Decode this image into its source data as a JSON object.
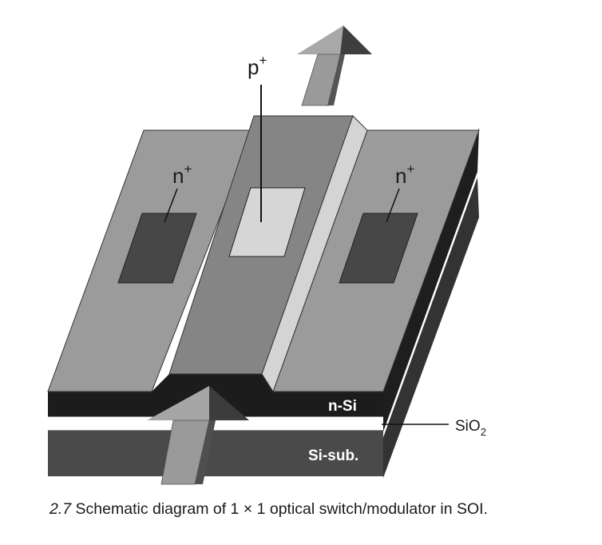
{
  "labels": {
    "p_contact": {
      "base": "p",
      "sup": "+"
    },
    "n_contact_left": {
      "base": "n",
      "sup": "+"
    },
    "n_contact_right": {
      "base": "n",
      "sup": "+"
    },
    "n_si": "n-Si",
    "sio2": {
      "base": "SiO",
      "sub": "2"
    },
    "si_sub": "Si-sub."
  },
  "caption": {
    "number": "2.7",
    "text": "Schematic diagram of 1 × 1 optical switch/modulator in SOI."
  },
  "colors": {
    "top_surface": "#9b9b9b",
    "rib": "#858585",
    "rib_side": "#d4d4d4",
    "n_pad": "#474747",
    "p_pad": "#d6d6d6",
    "n_si_layer": "#1c1c1c",
    "oxide_layer": "#ffffff",
    "substrate_layer": "#4a4a4a",
    "side_dark": "#2a2a2a",
    "arrow_light": "#9a9a9a",
    "arrow_dark": "#4d4d4d"
  }
}
